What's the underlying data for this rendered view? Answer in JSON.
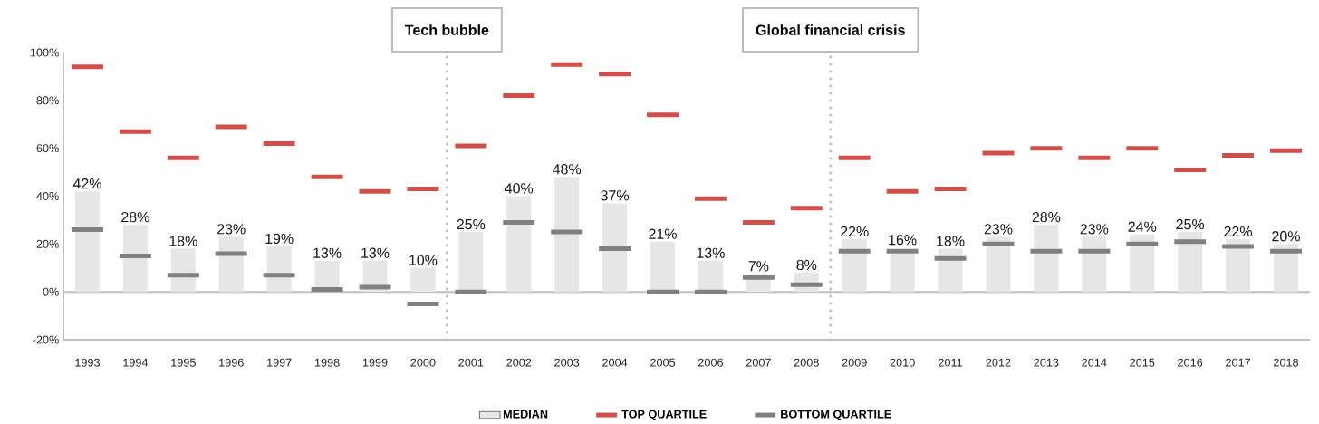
{
  "chart_data": {
    "type": "bar",
    "x": [
      1993,
      1994,
      1995,
      1996,
      1997,
      1998,
      1999,
      2000,
      2001,
      2002,
      2003,
      2004,
      2005,
      2006,
      2007,
      2008,
      2009,
      2010,
      2011,
      2012,
      2013,
      2014,
      2015,
      2016,
      2017,
      2018
    ],
    "xlim": [
      1992.5,
      2018.5
    ],
    "xticks": [
      1993,
      1994,
      1995,
      1996,
      1997,
      1998,
      1999,
      2000,
      2001,
      2002,
      2003,
      2004,
      2005,
      2006,
      2007,
      2008,
      2009,
      2010,
      2011,
      2012,
      2013,
      2014,
      2015,
      2016,
      2017,
      2018
    ],
    "ylim": [
      -20,
      100
    ],
    "yticks": [
      {
        "value": -20,
        "label": "-20%"
      },
      {
        "value": 0,
        "label": "0%"
      },
      {
        "value": 20,
        "label": "20%"
      },
      {
        "value": 40,
        "label": "40%"
      },
      {
        "value": 60,
        "label": "60%"
      },
      {
        "value": 80,
        "label": "80%"
      },
      {
        "value": 100,
        "label": "100%"
      }
    ],
    "legend": "bottom",
    "series": [
      {
        "name": "MEDIAN",
        "color": "#e6e6e6",
        "values": [
          42,
          28,
          18,
          23,
          19,
          13,
          13,
          10,
          25,
          40,
          48,
          37,
          21,
          13,
          7,
          8,
          22,
          16,
          18,
          23,
          28,
          23,
          24,
          25,
          22,
          20
        ],
        "value_labels": [
          "42%",
          "28%",
          "18%",
          "23%",
          "19%",
          "13%",
          "13%",
          "10%",
          "25%",
          "40%",
          "48%",
          "37%",
          "21%",
          "13%",
          "7%",
          "8%",
          "22%",
          "16%",
          "18%",
          "23%",
          "28%",
          "23%",
          "24%",
          "25%",
          "22%",
          "20%"
        ]
      },
      {
        "name": "TOP QUARTILE",
        "type": "line",
        "color": "#d04f4a",
        "x": [
          1992.67,
          1993.33,
          1993.5,
          1993.67,
          1994.33,
          1994.5,
          1994.67,
          1995.33,
          1995.5,
          1995.67,
          1996.33,
          1996.5,
          1996.67,
          1997.33,
          1997.5,
          1997.67,
          1998.33,
          1998.5,
          1998.67,
          1999.33,
          1999.5,
          1999.67,
          2000.33,
          2000.5,
          2000.67,
          2001.33,
          2001.5,
          2001.67,
          2002.33,
          2002.5,
          2002.67,
          2003.33,
          2003.5,
          2003.67,
          2004.33,
          2004.5,
          2004.67,
          2005.33,
          2005.5,
          2005.67,
          2006.33,
          2006.5,
          2006.67,
          2007.33,
          2007.5,
          2007.67,
          2008.33,
          2008.5,
          2008.67,
          2009.33,
          2009.5,
          2009.67,
          2010.33,
          2010.5,
          2010.67,
          2011.33,
          2011.5,
          2011.67,
          2012.33,
          2012.5,
          2012.67,
          2013.33,
          2013.5,
          2013.67,
          2014.33,
          2014.5,
          2014.67,
          2015.33,
          2015.5,
          2015.67,
          2016.33,
          2016.5,
          2016.67,
          2017.33,
          2017.5,
          2017.67,
          2018.33
        ],
        "values": [
          94,
          94,
          null,
          67,
          67,
          null,
          56,
          56,
          null,
          69,
          69,
          null,
          62,
          62,
          null,
          48,
          48,
          null,
          42,
          42,
          null,
          43,
          43,
          null,
          61,
          61,
          null,
          82,
          82,
          null,
          95,
          95,
          null,
          91,
          91,
          null,
          74,
          74,
          null,
          39,
          39,
          null,
          29,
          29,
          null,
          35,
          35,
          null,
          56,
          56,
          null,
          42,
          42,
          null,
          43,
          43,
          null,
          58,
          58,
          null,
          60,
          60,
          null,
          56,
          56,
          null,
          60,
          60,
          null,
          51,
          51,
          null,
          57,
          57,
          null,
          59,
          59
        ]
      },
      {
        "name": "BOTTOM QUARTILE",
        "type": "line",
        "color": "#808080",
        "x": [
          1992.67,
          1993.33,
          1993.5,
          1993.67,
          1994.33,
          1994.5,
          1994.67,
          1995.33,
          1995.5,
          1995.67,
          1996.33,
          1996.5,
          1996.67,
          1997.33,
          1997.5,
          1997.67,
          1998.33,
          1998.5,
          1998.67,
          1999.33,
          1999.5,
          1999.67,
          2000.33,
          2000.5,
          2000.67,
          2001.33,
          2001.5,
          2001.67,
          2002.33,
          2002.5,
          2002.67,
          2003.33,
          2003.5,
          2003.67,
          2004.33,
          2004.5,
          2004.67,
          2005.33,
          2005.5,
          2005.67,
          2006.33,
          2006.5,
          2006.67,
          2007.33,
          2007.5,
          2007.67,
          2008.33,
          2008.5,
          2008.67,
          2009.33,
          2009.5,
          2009.67,
          2010.33,
          2010.5,
          2010.67,
          2011.33,
          2011.5,
          2011.67,
          2012.33,
          2012.5,
          2012.67,
          2013.33,
          2013.5,
          2013.67,
          2014.33,
          2014.5,
          2014.67,
          2015.33,
          2015.5,
          2015.67,
          2016.33,
          2016.5,
          2016.67,
          2017.33,
          2017.5,
          2017.67,
          2018.33
        ],
        "values": [
          26,
          26,
          null,
          15,
          15,
          null,
          7,
          7,
          null,
          16,
          16,
          null,
          7,
          7,
          null,
          1,
          1,
          null,
          2,
          2,
          null,
          -5,
          -5,
          null,
          0,
          0,
          null,
          29,
          29,
          null,
          25,
          25,
          null,
          18,
          18,
          null,
          0,
          0,
          null,
          0,
          0,
          null,
          6,
          6,
          null,
          3,
          3,
          null,
          17,
          17,
          null,
          17,
          17,
          null,
          14,
          14,
          null,
          20,
          20,
          null,
          17,
          17,
          null,
          17,
          17,
          null,
          20,
          20,
          null,
          21,
          21,
          null,
          19,
          19,
          null,
          17,
          17
        ]
      }
    ],
    "ref_lines": [
      {
        "axis": "x",
        "value": 2000.5,
        "label": "Tech bubble",
        "color": "#bbbbbb",
        "line_style": "dotted"
      },
      {
        "axis": "x",
        "value": 2008.5,
        "label": "Global financial crisis",
        "color": "#bbbbbb",
        "line_style": "dotted"
      }
    ]
  }
}
